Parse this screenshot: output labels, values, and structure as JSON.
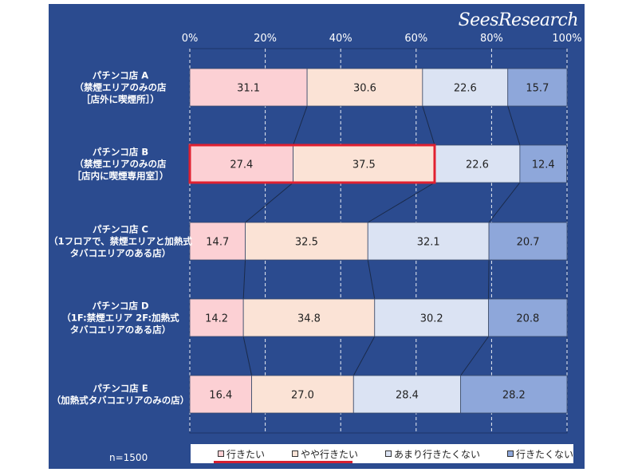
{
  "brand": "SeesResearch",
  "sample_size": "n=1500",
  "chart_data": {
    "type": "bar",
    "stacked": true,
    "orientation": "horizontal",
    "percent_axis": true,
    "xlim": [
      0,
      100
    ],
    "x_ticks": [
      "0%",
      "20%",
      "40%",
      "60%",
      "80%",
      "100%"
    ],
    "categories": [
      [
        "パチンコ店 A",
        "（禁煙エリアのみの店",
        "［店外に喫煙所］）"
      ],
      [
        "パチンコ店 B",
        "（禁煙エリアのみの店",
        "［店内に喫煙専用室］）"
      ],
      [
        "パチンコ店 C",
        "（1フロアで、禁煙エリアと加熱式",
        "タバコエリアのある店）"
      ],
      [
        "パチンコ店 D",
        "（1F:禁煙エリア 2F:加熱式",
        "タバコエリアのある店）"
      ],
      [
        "パチンコ店 E",
        "（加熱式タバコエリアのみの店）"
      ]
    ],
    "series": [
      {
        "name": "行きたい",
        "color": "#fcd0d4",
        "values": [
          31.1,
          27.4,
          14.7,
          14.2,
          16.4
        ]
      },
      {
        "name": "やや行きたい",
        "color": "#fbe3d6",
        "values": [
          30.6,
          37.5,
          32.5,
          34.8,
          27.0
        ]
      },
      {
        "name": "あまり行きたくない",
        "color": "#dbe3f3",
        "values": [
          22.6,
          22.6,
          32.1,
          30.2,
          28.4
        ]
      },
      {
        "name": "行きたくない",
        "color": "#8ea7da",
        "values": [
          15.7,
          12.4,
          20.7,
          20.8,
          28.2
        ]
      }
    ],
    "highlight": {
      "category_index": 1,
      "series_count": 2,
      "color": "#e02030"
    },
    "legend_placement": "bottom"
  }
}
